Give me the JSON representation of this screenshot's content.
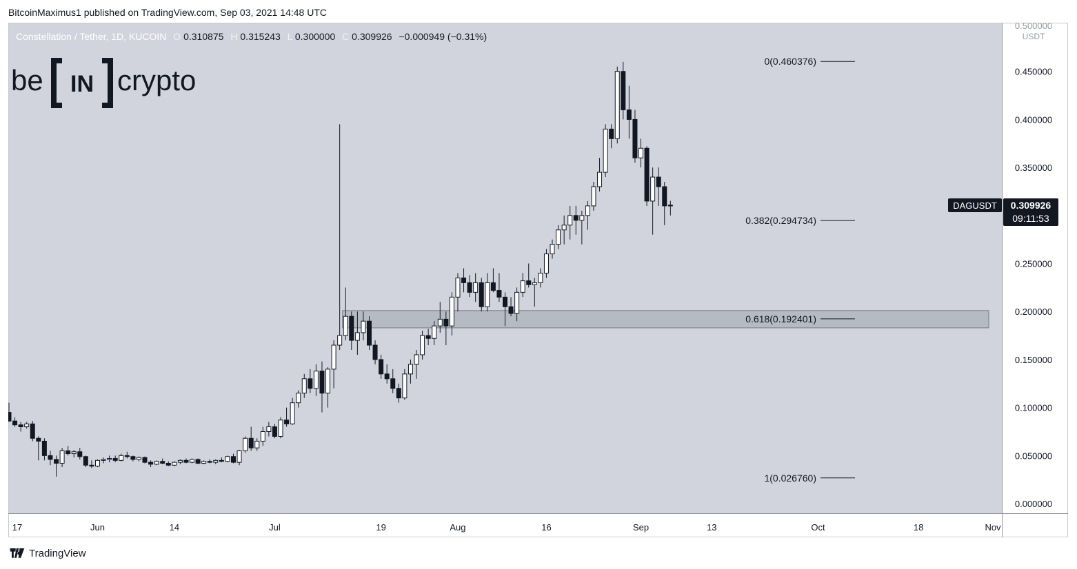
{
  "header": {
    "published": "BitcoinMaximus1 published on TradingView.com, Sep 03, 2021 14:48 UTC"
  },
  "footer": {
    "brand": "TradingView",
    "icon": "tradingview-logo-icon"
  },
  "symbol_info": {
    "name": "Constellation / Tether, 1D, KUCOIN",
    "o_label": "O",
    "o": "0.310875",
    "h_label": "H",
    "h": "0.315243",
    "l_label": "L",
    "l": "0.300000",
    "c_label": "C",
    "c": "0.309926",
    "change": "−0.000949 (−0.31%)"
  },
  "watermark": {
    "left": "be",
    "middle": "IN",
    "right": "crypto"
  },
  "price_tag": {
    "symbol": "DAGUSDT",
    "price": "0.309926",
    "countdown": "09:11:53"
  },
  "colors": {
    "background": "#d1d4dc",
    "axis": "#ffffff",
    "candle_up": "#ffffff",
    "candle_down": "#131722",
    "zone": "#b2b5be",
    "fib_line": "#131722",
    "tag": "#131722"
  },
  "chart_data": {
    "type": "candlestick",
    "symbol": "DAGUSDT",
    "unit": "USDT",
    "ylim": [
      -0.01,
      0.5
    ],
    "y_ticks": [
      "0.000000",
      "0.050000",
      "0.100000",
      "0.150000",
      "0.200000",
      "0.250000",
      "0.300000",
      "0.350000",
      "0.400000",
      "0.450000",
      "0.500000"
    ],
    "x_ticks": [
      "17",
      "Jun",
      "14",
      "Jul",
      "19",
      "Aug",
      "16",
      "Sep",
      "13",
      "Oct",
      "18",
      "Nov"
    ],
    "x_tick_dates": [
      "2021-05-17",
      "2021-06-01",
      "2021-06-14",
      "2021-07-01",
      "2021-07-19",
      "2021-08-01",
      "2021-08-16",
      "2021-09-01",
      "2021-09-13",
      "2021-10-01",
      "2021-10-18",
      "2021-11-01"
    ],
    "x_range": [
      "2021-05-17",
      "2021-11-01"
    ],
    "support_zone": {
      "low": 0.183,
      "high": 0.201
    },
    "fib_levels": [
      {
        "label": "0(0.460376)",
        "value": 0.460376
      },
      {
        "label": "0.382(0.294734)",
        "value": 0.294734
      },
      {
        "label": "0.618(0.192401)",
        "value": 0.192401
      },
      {
        "label": "1(0.026760)",
        "value": 0.02676
      }
    ],
    "candles": [
      {
        "date": "2021-05-17",
        "o": 0.095,
        "h": 0.105,
        "l": 0.085,
        "c": 0.086
      },
      {
        "date": "2021-05-18",
        "o": 0.086,
        "h": 0.09,
        "l": 0.08,
        "c": 0.082
      },
      {
        "date": "2021-05-19",
        "o": 0.082,
        "h": 0.085,
        "l": 0.075,
        "c": 0.08
      },
      {
        "date": "2021-05-20",
        "o": 0.08,
        "h": 0.085,
        "l": 0.078,
        "c": 0.083
      },
      {
        "date": "2021-05-21",
        "o": 0.083,
        "h": 0.086,
        "l": 0.065,
        "c": 0.068
      },
      {
        "date": "2021-05-22",
        "o": 0.068,
        "h": 0.07,
        "l": 0.045,
        "c": 0.065
      },
      {
        "date": "2021-05-23",
        "o": 0.065,
        "h": 0.068,
        "l": 0.045,
        "c": 0.05
      },
      {
        "date": "2021-05-24",
        "o": 0.05,
        "h": 0.055,
        "l": 0.04,
        "c": 0.046
      },
      {
        "date": "2021-05-25",
        "o": 0.046,
        "h": 0.05,
        "l": 0.028,
        "c": 0.042
      },
      {
        "date": "2021-05-26",
        "o": 0.042,
        "h": 0.058,
        "l": 0.038,
        "c": 0.055
      },
      {
        "date": "2021-05-27",
        "o": 0.055,
        "h": 0.06,
        "l": 0.05,
        "c": 0.052
      },
      {
        "date": "2021-05-28",
        "o": 0.052,
        "h": 0.056,
        "l": 0.048,
        "c": 0.054
      },
      {
        "date": "2021-05-29",
        "o": 0.054,
        "h": 0.058,
        "l": 0.046,
        "c": 0.049
      },
      {
        "date": "2021-05-30",
        "o": 0.049,
        "h": 0.05,
        "l": 0.038,
        "c": 0.04
      },
      {
        "date": "2021-05-31",
        "o": 0.04,
        "h": 0.045,
        "l": 0.037,
        "c": 0.039
      },
      {
        "date": "2021-06-01",
        "o": 0.039,
        "h": 0.046,
        "l": 0.038,
        "c": 0.045
      },
      {
        "date": "2021-06-02",
        "o": 0.045,
        "h": 0.048,
        "l": 0.042,
        "c": 0.046
      },
      {
        "date": "2021-06-03",
        "o": 0.046,
        "h": 0.05,
        "l": 0.043,
        "c": 0.047
      },
      {
        "date": "2021-06-04",
        "o": 0.047,
        "h": 0.05,
        "l": 0.043,
        "c": 0.045
      },
      {
        "date": "2021-06-05",
        "o": 0.045,
        "h": 0.052,
        "l": 0.044,
        "c": 0.05
      },
      {
        "date": "2021-06-06",
        "o": 0.05,
        "h": 0.054,
        "l": 0.047,
        "c": 0.049
      },
      {
        "date": "2021-06-07",
        "o": 0.049,
        "h": 0.05,
        "l": 0.044,
        "c": 0.046
      },
      {
        "date": "2021-06-08",
        "o": 0.046,
        "h": 0.049,
        "l": 0.044,
        "c": 0.048
      },
      {
        "date": "2021-06-09",
        "o": 0.048,
        "h": 0.049,
        "l": 0.042,
        "c": 0.043
      },
      {
        "date": "2021-06-10",
        "o": 0.043,
        "h": 0.045,
        "l": 0.038,
        "c": 0.041
      },
      {
        "date": "2021-06-11",
        "o": 0.041,
        "h": 0.045,
        "l": 0.04,
        "c": 0.044
      },
      {
        "date": "2021-06-12",
        "o": 0.044,
        "h": 0.047,
        "l": 0.041,
        "c": 0.042
      },
      {
        "date": "2021-06-13",
        "o": 0.042,
        "h": 0.044,
        "l": 0.039,
        "c": 0.04
      },
      {
        "date": "2021-06-14",
        "o": 0.04,
        "h": 0.044,
        "l": 0.039,
        "c": 0.043
      },
      {
        "date": "2021-06-15",
        "o": 0.043,
        "h": 0.046,
        "l": 0.041,
        "c": 0.045
      },
      {
        "date": "2021-06-16",
        "o": 0.045,
        "h": 0.047,
        "l": 0.042,
        "c": 0.043
      },
      {
        "date": "2021-06-17",
        "o": 0.043,
        "h": 0.047,
        "l": 0.042,
        "c": 0.046
      },
      {
        "date": "2021-06-18",
        "o": 0.046,
        "h": 0.047,
        "l": 0.041,
        "c": 0.042
      },
      {
        "date": "2021-06-19",
        "o": 0.042,
        "h": 0.045,
        "l": 0.041,
        "c": 0.044
      },
      {
        "date": "2021-06-20",
        "o": 0.044,
        "h": 0.046,
        "l": 0.042,
        "c": 0.043
      },
      {
        "date": "2021-06-21",
        "o": 0.043,
        "h": 0.046,
        "l": 0.041,
        "c": 0.045
      },
      {
        "date": "2021-06-22",
        "o": 0.045,
        "h": 0.048,
        "l": 0.043,
        "c": 0.044
      },
      {
        "date": "2021-06-23",
        "o": 0.044,
        "h": 0.05,
        "l": 0.043,
        "c": 0.049
      },
      {
        "date": "2021-06-24",
        "o": 0.049,
        "h": 0.052,
        "l": 0.042,
        "c": 0.043
      },
      {
        "date": "2021-06-25",
        "o": 0.043,
        "h": 0.056,
        "l": 0.04,
        "c": 0.055
      },
      {
        "date": "2021-06-26",
        "o": 0.055,
        "h": 0.07,
        "l": 0.053,
        "c": 0.068
      },
      {
        "date": "2021-06-27",
        "o": 0.068,
        "h": 0.08,
        "l": 0.055,
        "c": 0.058
      },
      {
        "date": "2021-06-28",
        "o": 0.058,
        "h": 0.068,
        "l": 0.055,
        "c": 0.065
      },
      {
        "date": "2021-06-29",
        "o": 0.065,
        "h": 0.08,
        "l": 0.06,
        "c": 0.075
      },
      {
        "date": "2021-06-30",
        "o": 0.075,
        "h": 0.085,
        "l": 0.07,
        "c": 0.08
      },
      {
        "date": "2021-07-01",
        "o": 0.08,
        "h": 0.083,
        "l": 0.068,
        "c": 0.07
      },
      {
        "date": "2021-07-02",
        "o": 0.07,
        "h": 0.09,
        "l": 0.068,
        "c": 0.087
      },
      {
        "date": "2021-07-03",
        "o": 0.087,
        "h": 0.1,
        "l": 0.08,
        "c": 0.083
      },
      {
        "date": "2021-07-04",
        "o": 0.083,
        "h": 0.11,
        "l": 0.082,
        "c": 0.105
      },
      {
        "date": "2021-07-05",
        "o": 0.105,
        "h": 0.118,
        "l": 0.1,
        "c": 0.115
      },
      {
        "date": "2021-07-06",
        "o": 0.115,
        "h": 0.135,
        "l": 0.11,
        "c": 0.13
      },
      {
        "date": "2021-07-07",
        "o": 0.13,
        "h": 0.14,
        "l": 0.115,
        "c": 0.12
      },
      {
        "date": "2021-07-08",
        "o": 0.12,
        "h": 0.145,
        "l": 0.112,
        "c": 0.138
      },
      {
        "date": "2021-07-09",
        "o": 0.138,
        "h": 0.148,
        "l": 0.095,
        "c": 0.115
      },
      {
        "date": "2021-07-10",
        "o": 0.115,
        "h": 0.142,
        "l": 0.1,
        "c": 0.14
      },
      {
        "date": "2021-07-11",
        "o": 0.14,
        "h": 0.17,
        "l": 0.12,
        "c": 0.165
      },
      {
        "date": "2021-07-12",
        "o": 0.165,
        "h": 0.395,
        "l": 0.16,
        "c": 0.175
      },
      {
        "date": "2021-07-13",
        "o": 0.175,
        "h": 0.225,
        "l": 0.17,
        "c": 0.195
      },
      {
        "date": "2021-07-14",
        "o": 0.195,
        "h": 0.2,
        "l": 0.16,
        "c": 0.17
      },
      {
        "date": "2021-07-15",
        "o": 0.17,
        "h": 0.2,
        "l": 0.155,
        "c": 0.178
      },
      {
        "date": "2021-07-16",
        "o": 0.178,
        "h": 0.2,
        "l": 0.17,
        "c": 0.19
      },
      {
        "date": "2021-07-17",
        "o": 0.19,
        "h": 0.195,
        "l": 0.16,
        "c": 0.165
      },
      {
        "date": "2021-07-18",
        "o": 0.165,
        "h": 0.17,
        "l": 0.145,
        "c": 0.15
      },
      {
        "date": "2021-07-19",
        "o": 0.15,
        "h": 0.155,
        "l": 0.13,
        "c": 0.135
      },
      {
        "date": "2021-07-20",
        "o": 0.135,
        "h": 0.145,
        "l": 0.125,
        "c": 0.13
      },
      {
        "date": "2021-07-21",
        "o": 0.13,
        "h": 0.14,
        "l": 0.115,
        "c": 0.12
      },
      {
        "date": "2021-07-22",
        "o": 0.12,
        "h": 0.125,
        "l": 0.105,
        "c": 0.11
      },
      {
        "date": "2021-07-23",
        "o": 0.11,
        "h": 0.14,
        "l": 0.108,
        "c": 0.135
      },
      {
        "date": "2021-07-24",
        "o": 0.135,
        "h": 0.15,
        "l": 0.125,
        "c": 0.145
      },
      {
        "date": "2021-07-25",
        "o": 0.145,
        "h": 0.16,
        "l": 0.13,
        "c": 0.155
      },
      {
        "date": "2021-07-26",
        "o": 0.155,
        "h": 0.18,
        "l": 0.15,
        "c": 0.175
      },
      {
        "date": "2021-07-27",
        "o": 0.175,
        "h": 0.182,
        "l": 0.165,
        "c": 0.172
      },
      {
        "date": "2021-07-28",
        "o": 0.172,
        "h": 0.19,
        "l": 0.165,
        "c": 0.185
      },
      {
        "date": "2021-07-29",
        "o": 0.185,
        "h": 0.21,
        "l": 0.178,
        "c": 0.192
      },
      {
        "date": "2021-07-30",
        "o": 0.192,
        "h": 0.2,
        "l": 0.165,
        "c": 0.185
      },
      {
        "date": "2021-07-31",
        "o": 0.185,
        "h": 0.22,
        "l": 0.175,
        "c": 0.215
      },
      {
        "date": "2021-08-01",
        "o": 0.215,
        "h": 0.24,
        "l": 0.2,
        "c": 0.235
      },
      {
        "date": "2021-08-02",
        "o": 0.235,
        "h": 0.245,
        "l": 0.22,
        "c": 0.23
      },
      {
        "date": "2021-08-03",
        "o": 0.23,
        "h": 0.238,
        "l": 0.215,
        "c": 0.22
      },
      {
        "date": "2021-08-04",
        "o": 0.22,
        "h": 0.24,
        "l": 0.21,
        "c": 0.23
      },
      {
        "date": "2021-08-05",
        "o": 0.23,
        "h": 0.235,
        "l": 0.2,
        "c": 0.205
      },
      {
        "date": "2021-08-06",
        "o": 0.205,
        "h": 0.24,
        "l": 0.2,
        "c": 0.23
      },
      {
        "date": "2021-08-07",
        "o": 0.23,
        "h": 0.245,
        "l": 0.22,
        "c": 0.222
      },
      {
        "date": "2021-08-08",
        "o": 0.222,
        "h": 0.24,
        "l": 0.21,
        "c": 0.215
      },
      {
        "date": "2021-08-09",
        "o": 0.215,
        "h": 0.22,
        "l": 0.185,
        "c": 0.205
      },
      {
        "date": "2021-08-10",
        "o": 0.205,
        "h": 0.215,
        "l": 0.195,
        "c": 0.198
      },
      {
        "date": "2021-08-11",
        "o": 0.198,
        "h": 0.225,
        "l": 0.19,
        "c": 0.22
      },
      {
        "date": "2021-08-12",
        "o": 0.22,
        "h": 0.24,
        "l": 0.215,
        "c": 0.232
      },
      {
        "date": "2021-08-13",
        "o": 0.232,
        "h": 0.25,
        "l": 0.225,
        "c": 0.228
      },
      {
        "date": "2021-08-14",
        "o": 0.228,
        "h": 0.235,
        "l": 0.205,
        "c": 0.23
      },
      {
        "date": "2021-08-15",
        "o": 0.23,
        "h": 0.245,
        "l": 0.225,
        "c": 0.24
      },
      {
        "date": "2021-08-16",
        "o": 0.24,
        "h": 0.265,
        "l": 0.235,
        "c": 0.26
      },
      {
        "date": "2021-08-17",
        "o": 0.26,
        "h": 0.275,
        "l": 0.255,
        "c": 0.27
      },
      {
        "date": "2021-08-18",
        "o": 0.27,
        "h": 0.29,
        "l": 0.265,
        "c": 0.285
      },
      {
        "date": "2021-08-19",
        "o": 0.285,
        "h": 0.3,
        "l": 0.27,
        "c": 0.29
      },
      {
        "date": "2021-08-20",
        "o": 0.29,
        "h": 0.31,
        "l": 0.275,
        "c": 0.3
      },
      {
        "date": "2021-08-21",
        "o": 0.3,
        "h": 0.31,
        "l": 0.28,
        "c": 0.295
      },
      {
        "date": "2021-08-22",
        "o": 0.295,
        "h": 0.305,
        "l": 0.27,
        "c": 0.3
      },
      {
        "date": "2021-08-23",
        "o": 0.3,
        "h": 0.315,
        "l": 0.285,
        "c": 0.31
      },
      {
        "date": "2021-08-24",
        "o": 0.31,
        "h": 0.335,
        "l": 0.305,
        "c": 0.33
      },
      {
        "date": "2021-08-25",
        "o": 0.33,
        "h": 0.36,
        "l": 0.325,
        "c": 0.345
      },
      {
        "date": "2021-08-26",
        "o": 0.345,
        "h": 0.395,
        "l": 0.34,
        "c": 0.39
      },
      {
        "date": "2021-08-27",
        "o": 0.39,
        "h": 0.395,
        "l": 0.37,
        "c": 0.38
      },
      {
        "date": "2021-08-28",
        "o": 0.38,
        "h": 0.455,
        "l": 0.375,
        "c": 0.45
      },
      {
        "date": "2021-08-29",
        "o": 0.45,
        "h": 0.46,
        "l": 0.4,
        "c": 0.41
      },
      {
        "date": "2021-08-30",
        "o": 0.41,
        "h": 0.435,
        "l": 0.38,
        "c": 0.4
      },
      {
        "date": "2021-08-31",
        "o": 0.4,
        "h": 0.41,
        "l": 0.355,
        "c": 0.36
      },
      {
        "date": "2021-09-01",
        "o": 0.36,
        "h": 0.38,
        "l": 0.35,
        "c": 0.37
      },
      {
        "date": "2021-09-02",
        "o": 0.37,
        "h": 0.372,
        "l": 0.31,
        "c": 0.315
      },
      {
        "date": "2021-09-03",
        "o": 0.315,
        "h": 0.35,
        "l": 0.28,
        "c": 0.34
      },
      {
        "date": "2021-09-04",
        "o": 0.34,
        "h": 0.35,
        "l": 0.31,
        "c": 0.33
      },
      {
        "date": "2021-09-05",
        "o": 0.33,
        "h": 0.335,
        "l": 0.29,
        "c": 0.31
      },
      {
        "date": "2021-09-06",
        "o": 0.310875,
        "h": 0.315243,
        "l": 0.3,
        "c": 0.309926
      }
    ]
  }
}
